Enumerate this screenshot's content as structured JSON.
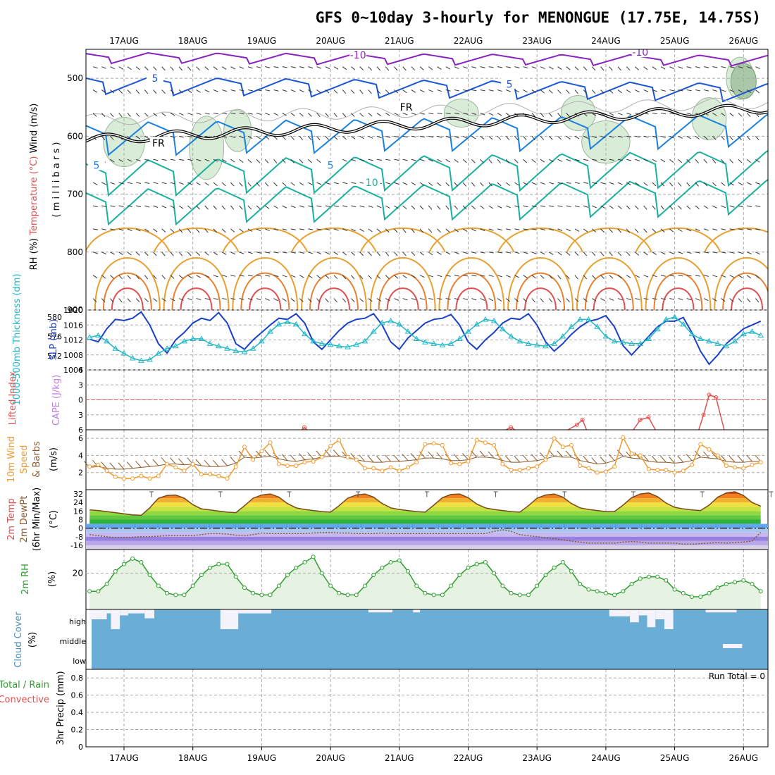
{
  "title": "GFS 0~10day 3-hourly for MENONGUE (17.75E, 14.75S)",
  "dates": [
    "17AUG",
    "18AUG",
    "19AUG",
    "20AUG",
    "21AUG",
    "22AUG",
    "23AUG",
    "24AUG",
    "25AUG",
    "26AUG"
  ],
  "colors": {
    "temp": "#e8a030",
    "rh": "#2e9e2e",
    "wind": "#f09a30",
    "slp": "#1a3fc8",
    "thick": "#20b8c8",
    "cloud": "#6aaed6",
    "lifted": "#e05050",
    "cape": "#c080e0"
  },
  "chart_data": [
    {
      "type": "contour",
      "panel": "upper-air",
      "ylabel_parts": [
        "RH (%)",
        "Temperature",
        "(°C)",
        "Wind (m/s)"
      ],
      "ylabel_unit": "( m i l l i b a r s )",
      "yticks": [
        500,
        600,
        700,
        800,
        900
      ],
      "ylim": [
        450,
        900
      ],
      "contour_labels": [
        {
          "text": "-10",
          "day": 3.4,
          "p": 460,
          "color": "#8a22c0"
        },
        {
          "text": "-10",
          "day": 7.5,
          "p": 455,
          "color": "#8a22c0"
        },
        {
          "text": "5",
          "day": 0.45,
          "p": 500,
          "color": "#1a55d6"
        },
        {
          "text": "5",
          "day": 5.6,
          "p": 510,
          "color": "#1a55d6"
        },
        {
          "text": "5",
          "day": -0.4,
          "p": 650,
          "color": "#1a80e0"
        },
        {
          "text": "5",
          "day": 3.0,
          "p": 650,
          "color": "#1a80e0"
        },
        {
          "text": "10",
          "day": 3.6,
          "p": 680,
          "color": "#18b0a0"
        },
        {
          "text": "FR",
          "day": 0.5,
          "p": 612,
          "color": "#000000"
        },
        {
          "text": "FR",
          "day": 4.1,
          "p": 550,
          "color": "#000000"
        }
      ]
    },
    {
      "type": "line",
      "panel": "thickness-slp",
      "ylabel_left": "1000-500mb Thickness (dm)",
      "ylabel_right": "SLP (mb)",
      "thick_ticks": [
        572,
        576,
        580
      ],
      "slp_ticks": [
        1004,
        1008,
        1012,
        1016,
        1020
      ],
      "series": [
        {
          "name": "SLP (mb)",
          "x_start": -0.5,
          "x_step": 0.125,
          "values": [
            1012.2,
            1011.5,
            1015.0,
            1017.5,
            1017.2,
            1017.8,
            1019.5,
            1016.0,
            1011.0,
            1008.5,
            1012.0,
            1014.0,
            1016.5,
            1017.8,
            1017.2,
            1019.3,
            1016.5,
            1011.0,
            1009.5,
            1012.0,
            1014.0,
            1016.0,
            1017.8,
            1017.5,
            1019.0,
            1016.5,
            1011.5,
            1009.5,
            1012.0,
            1014.5,
            1016.5,
            1017.5,
            1017.8,
            1019.0,
            1016.0,
            1011.5,
            1009.5,
            1012.5,
            1014.5,
            1016.5,
            1017.5,
            1017.8,
            1018.8,
            1016.0,
            1011.5,
            1009.5,
            1012.0,
            1014.0,
            1016.5,
            1017.8,
            1017.5,
            1019.0,
            1016.0,
            1011.5,
            1009.0,
            1011.0,
            1013.5,
            1015.5,
            1017.0,
            1017.5,
            1018.5,
            1015.5,
            1010.5,
            1008.0,
            1010.5,
            1013.0,
            1015.5,
            1017.0,
            1017.0,
            1018.0,
            1014.0,
            1009.0,
            1005.5,
            1008.0,
            1011.0,
            1013.0,
            1015.0,
            1016.0,
            1017.0
          ]
        },
        {
          "name": "Thickness (dm)",
          "x_start": -0.5,
          "x_step": 0.125,
          "values": [
            575.8,
            576.2,
            575.0,
            573.5,
            572.5,
            571.5,
            571.0,
            571.2,
            572.5,
            573.5,
            574.0,
            575.0,
            575.5,
            575.5,
            574.5,
            574.0,
            573.5,
            573.0,
            572.8,
            573.5,
            575.0,
            577.0,
            578.5,
            579.0,
            578.5,
            576.5,
            575.0,
            574.5,
            574.3,
            574.0,
            573.8,
            574.3,
            575.0,
            577.0,
            578.8,
            579.2,
            578.5,
            577.0,
            575.5,
            574.8,
            574.5,
            574.2,
            574.5,
            575.5,
            577.0,
            578.5,
            579.5,
            579.2,
            577.5,
            576.0,
            575.0,
            574.5,
            574.2,
            574.0,
            574.5,
            576.0,
            578.0,
            579.5,
            579.5,
            578.0,
            576.0,
            575.0,
            574.8,
            574.5,
            574.5,
            575.5,
            577.5,
            579.5,
            580.0,
            578.5,
            576.5,
            575.5,
            575.0,
            574.5,
            574.0,
            575.0,
            576.5,
            577.0,
            576.2
          ]
        }
      ]
    },
    {
      "type": "line",
      "panel": "stability",
      "ylabel_left": "Lifted Index",
      "ylabel_right": "CAPE (J/kg)",
      "yticks": [
        -6,
        -3,
        0,
        3,
        6
      ],
      "segments": [
        [
          [
            2.58,
            6.0
          ],
          [
            2.62,
            5.5
          ],
          [
            2.66,
            6.0
          ]
        ],
        [
          [
            5.55,
            6.0
          ],
          [
            5.62,
            5.5
          ],
          [
            5.68,
            6.0
          ]
        ],
        [
          [
            6.45,
            6.0
          ],
          [
            6.58,
            5.0
          ],
          [
            6.66,
            4.0
          ],
          [
            6.72,
            6.0
          ]
        ],
        [
          [
            7.4,
            6.0
          ],
          [
            7.5,
            4.0
          ],
          [
            7.62,
            3.5
          ],
          [
            7.72,
            6.0
          ]
        ],
        [
          [
            8.35,
            6.0
          ],
          [
            8.42,
            3.0
          ],
          [
            8.5,
            -1.0
          ],
          [
            8.6,
            -0.5
          ],
          [
            8.72,
            6.0
          ]
        ]
      ]
    },
    {
      "type": "line",
      "panel": "wind10m",
      "ylabel": [
        "10m Wind",
        "Speed",
        "& Barbs",
        "(m/s)"
      ],
      "yticks": [
        2,
        4,
        6
      ],
      "series": [
        {
          "name": "10m Wind Speed",
          "x_start": -0.5,
          "x_step": 0.125,
          "values": [
            2.7,
            2.9,
            2.2,
            1.5,
            1.3,
            1.3,
            1.6,
            1.3,
            1.6,
            3.0,
            2.6,
            2.2,
            3.0,
            1.8,
            1.8,
            1.6,
            1.3,
            2.7,
            5.0,
            3.5,
            4.5,
            5.5,
            3.0,
            2.8,
            2.8,
            3.2,
            3.3,
            3.8,
            5.1,
            5.8,
            3.8,
            3.5,
            2.5,
            2.5,
            2.2,
            2.6,
            2.2,
            2.6,
            3.2,
            5.3,
            5.4,
            5.2,
            3.1,
            3.0,
            3.3,
            5.8,
            5.5,
            5.2,
            3.0,
            2.3,
            2.3,
            2.5,
            2.7,
            3.5,
            6.0,
            5.0,
            5.2,
            2.8,
            2.5,
            2.0,
            2.1,
            2.7,
            6.1,
            4.2,
            4.0,
            2.4,
            2.3,
            2.3,
            2.0,
            2.2,
            2.9,
            5.3,
            4.7,
            4.0,
            2.8,
            2.6,
            2.5,
            2.9,
            3.2
          ]
        },
        {
          "name": "Barb trend",
          "x_start": -0.5,
          "x_step": 0.125,
          "values": [
            2.6,
            2.7,
            2.5,
            2.4,
            2.4,
            2.5,
            2.6,
            2.7,
            2.8,
            3.0,
            3.0,
            2.9,
            3.0,
            2.8,
            2.7,
            2.7,
            2.8,
            3.1,
            3.8,
            3.7,
            3.8,
            3.9,
            3.6,
            3.4,
            3.3,
            3.5,
            3.6,
            3.8,
            3.9,
            3.9,
            3.7,
            3.5,
            3.3,
            3.2,
            3.2,
            3.3,
            3.3,
            3.4,
            3.5,
            3.7,
            3.7,
            3.6,
            3.4,
            3.4,
            3.5,
            3.8,
            3.8,
            3.7,
            3.4,
            3.2,
            3.2,
            3.3,
            3.4,
            3.6,
            3.9,
            3.8,
            3.8,
            3.4,
            3.2,
            3.0,
            3.1,
            3.4,
            3.9,
            3.7,
            3.6,
            3.3,
            3.2,
            3.2,
            3.1,
            3.2,
            3.4,
            3.8,
            3.7,
            3.6,
            3.3,
            3.2,
            3.2,
            3.3,
            3.3
          ]
        }
      ]
    },
    {
      "type": "area",
      "panel": "temp2m",
      "ylabel": [
        "2m Temp",
        "2m DewPt",
        "(6hr Min/Max)",
        "(°C)"
      ],
      "yticks": [
        32,
        24,
        16,
        8,
        0,
        -8,
        -16
      ],
      "series": [
        {
          "name": "2m Temp",
          "x_start": -0.5,
          "x_step": 0.125,
          "values": [
            17.0,
            16.5,
            15.5,
            14.5,
            13.5,
            12.5,
            12.0,
            19.0,
            28.0,
            30.5,
            31.0,
            28.0,
            22.0,
            18.0,
            17.0,
            16.0,
            15.0,
            14.5,
            21.0,
            28.0,
            31.0,
            32.0,
            29.0,
            23.0,
            19.0,
            17.5,
            16.5,
            15.5,
            15.0,
            21.0,
            28.0,
            31.0,
            32.0,
            29.0,
            23.0,
            19.0,
            17.5,
            16.5,
            15.5,
            15.0,
            21.5,
            28.5,
            31.5,
            32.0,
            28.5,
            22.5,
            19.0,
            17.5,
            16.5,
            15.5,
            15.0,
            21.0,
            28.0,
            31.0,
            32.0,
            29.0,
            23.0,
            19.0,
            17.5,
            16.5,
            15.5,
            15.5,
            21.5,
            28.5,
            32.0,
            33.0,
            29.5,
            23.5,
            19.5,
            18.0,
            17.0,
            16.5,
            21.5,
            29.0,
            33.0,
            34.0,
            30.5,
            24.0,
            20.5
          ]
        },
        {
          "name": "2m DewPt",
          "x_start": -0.5,
          "x_step": 0.125,
          "values": [
            -6.0,
            -7.0,
            -8.0,
            -9.0,
            -9.0,
            -8.5,
            -8.0,
            -8.0,
            -7.5,
            -7.0,
            -7.0,
            -7.0,
            -7.0,
            -6.0,
            -5.0,
            -5.0,
            -5.5,
            -6.5,
            -7.0,
            -6.0,
            -4.5,
            -5.0,
            -5.0,
            -5.0,
            -5.0,
            -5.0,
            -4.5,
            -4.0,
            -4.0,
            -4.5,
            -4.5,
            -5.0,
            -5.0,
            -5.0,
            -4.5,
            -5.0,
            -5.0,
            -5.0,
            -5.0,
            -5.0,
            -5.0,
            -5.0,
            -5.0,
            -5.0,
            -5.0,
            -5.0,
            -5.0,
            -3.0,
            -1.5,
            -3.0,
            -6.0,
            -7.0,
            -8.0,
            -9.0,
            -10.0,
            -11.0,
            -12.0,
            -13.0,
            -14.0,
            -14.0,
            -14.0,
            -14.0,
            -13.0,
            -12.5,
            -13.0,
            -14.0,
            -14.0,
            -14.0,
            -14.0,
            -15.0,
            -15.0,
            -14.5,
            -14.0,
            -13.5,
            -14.0,
            -13.5,
            -13.0,
            -12.0,
            -4.0
          ]
        }
      ]
    },
    {
      "type": "area",
      "panel": "rh2m",
      "ylabel": "2m RH",
      "yunit": "(%)",
      "yticks": [
        20
      ],
      "series": [
        {
          "name": "2m RH",
          "x_start": -0.5,
          "x_step": 0.125,
          "values": [
            10.0,
            10.0,
            14.0,
            21.0,
            25.0,
            28.0,
            26.0,
            19.0,
            13.0,
            9.0,
            8.0,
            8.0,
            13.0,
            19.0,
            23.0,
            25.0,
            25.0,
            18.0,
            12.0,
            9.0,
            8.0,
            8.0,
            13.0,
            19.0,
            23.0,
            26.0,
            29.0,
            20.0,
            13.0,
            9.0,
            8.0,
            8.0,
            13.0,
            19.0,
            23.0,
            26.0,
            27.0,
            21.0,
            13.0,
            9.0,
            8.0,
            8.0,
            13.0,
            19.0,
            23.0,
            25.0,
            26.0,
            20.0,
            13.0,
            9.0,
            8.0,
            8.0,
            13.0,
            19.0,
            23.0,
            26.0,
            21.0,
            14.0,
            11.0,
            10.0,
            9.0,
            8.0,
            10.0,
            14.0,
            17.0,
            18.0,
            18.0,
            16.0,
            11.0,
            9.0,
            7.0,
            7.0,
            9.0,
            12.0,
            14.0,
            15.0,
            16.0,
            14.0,
            10.0
          ]
        }
      ]
    },
    {
      "type": "bar",
      "panel": "cloud",
      "ylabel": "Cloud Cover",
      "yunit": "(%)",
      "levels": [
        "high",
        "middle",
        "low"
      ],
      "high_gaps": [
        {
          "start": -0.5,
          "end": -0.25,
          "depth": 0.5
        },
        {
          "start": -0.25,
          "end": -0.19,
          "depth": 0.2
        },
        {
          "start": -0.19,
          "end": -0.06,
          "depth": 1.0
        },
        {
          "start": -0.06,
          "end": 0.06,
          "depth": 0.3
        },
        {
          "start": 0.06,
          "end": 0.3,
          "depth": 0.2
        },
        {
          "start": 0.3,
          "end": 0.44,
          "depth": 0.45
        },
        {
          "start": 1.4,
          "end": 1.66,
          "depth": 1.0
        },
        {
          "start": 1.66,
          "end": 2.14,
          "depth": 0.2
        },
        {
          "start": 3.55,
          "end": 3.9,
          "depth": 0.15
        },
        {
          "start": 4.2,
          "end": 4.3,
          "depth": 0.15
        },
        {
          "start": 7.05,
          "end": 7.35,
          "depth": 0.35
        },
        {
          "start": 7.35,
          "end": 7.48,
          "depth": 0.65
        },
        {
          "start": 7.48,
          "end": 7.6,
          "depth": 0.3
        },
        {
          "start": 7.6,
          "end": 7.72,
          "depth": 0.9
        },
        {
          "start": 7.72,
          "end": 7.85,
          "depth": 0.5
        },
        {
          "start": 7.85,
          "end": 7.98,
          "depth": 1.0
        },
        {
          "start": 8.45,
          "end": 8.9,
          "depth": 0.15
        }
      ],
      "mid_gap": {
        "start": 8.7,
        "end": 8.98,
        "depth": 0.2
      }
    },
    {
      "type": "bar",
      "panel": "precip",
      "ylabel_left": "Total / Rain",
      "ylabel_right": "Convective",
      "ylabel": "3hr Precip (mm)",
      "yticks": [
        "0",
        "0.2",
        "0.4",
        "0.6",
        "0.8"
      ],
      "ylim": [
        0,
        0.9
      ],
      "run_total": "Run Total = 0",
      "values": []
    }
  ]
}
